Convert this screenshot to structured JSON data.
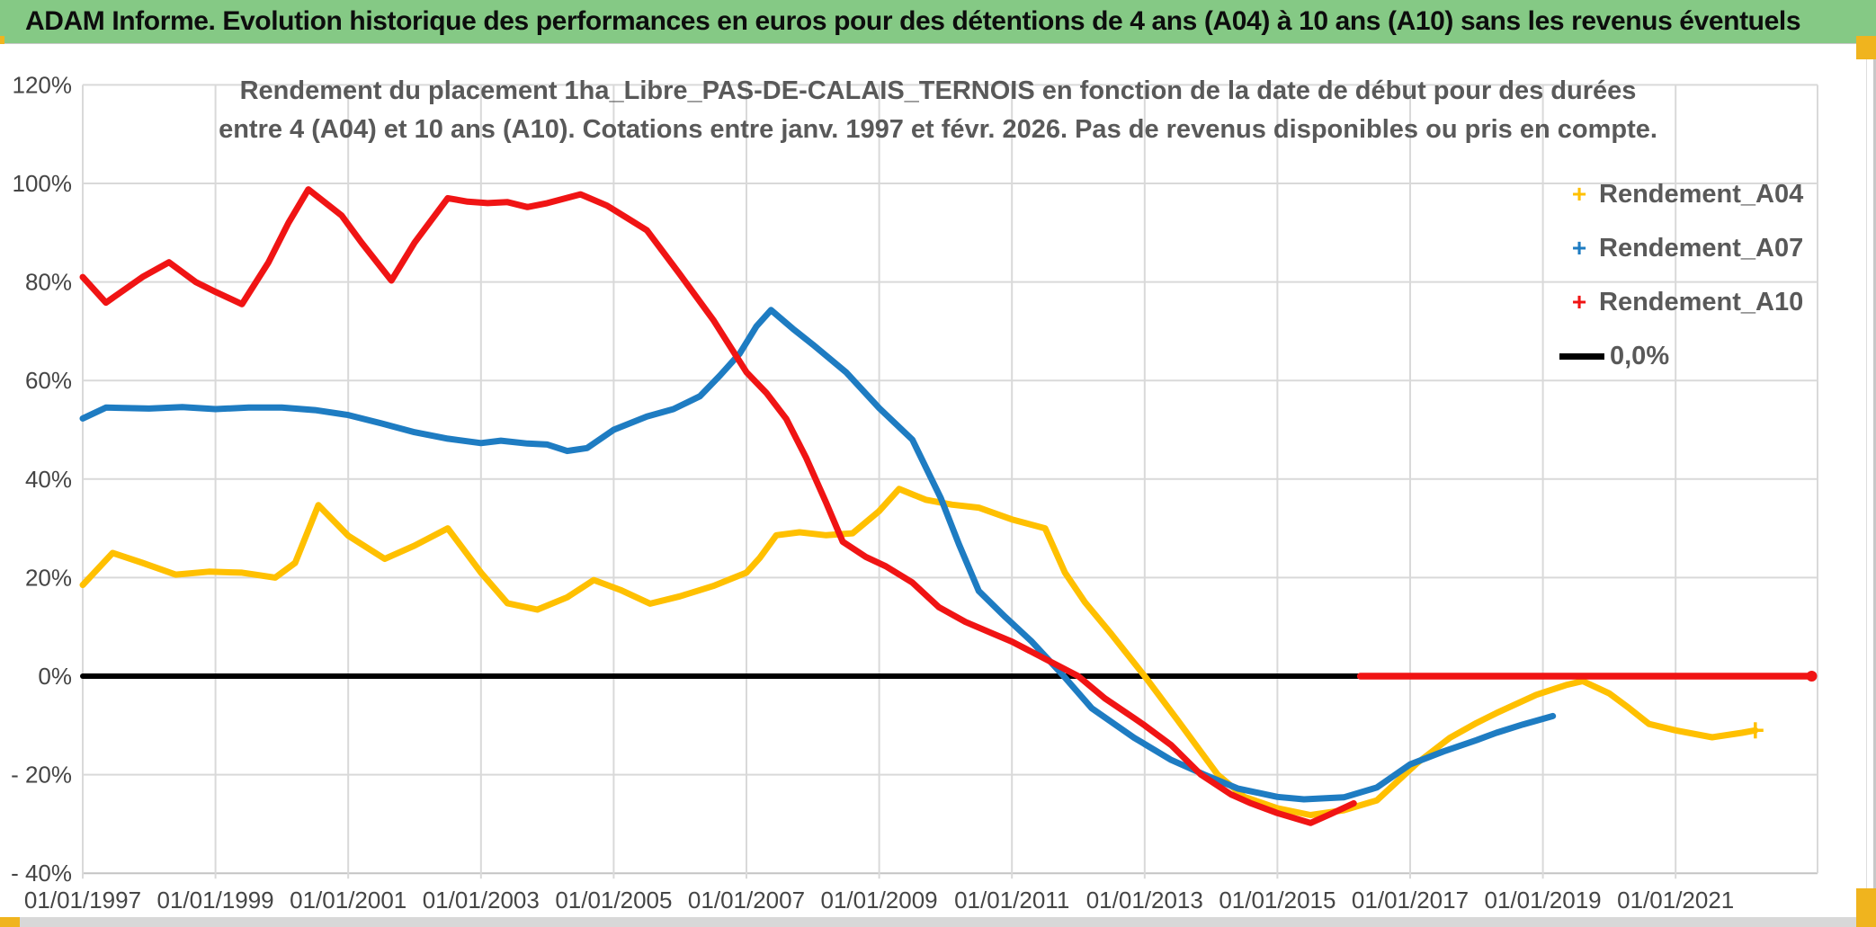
{
  "header": {
    "title": "ADAM Informe. Evolution historique des performances en euros pour des détentions de 4 ans (A04) à 10 ans (A10) sans les revenus éventuels",
    "bg_color": "#85C985"
  },
  "chart": {
    "title_line1": "Rendement du placement 1ha_Libre_PAS-DE-CALAIS_TERNOIS en fonction de la date de début pour des durées",
    "title_line2": "entre 4 (A04) et 10 ans (A10). Cotations entre janv. 1997 et févr. 2026. Pas de revenus disponibles ou pris en compte.",
    "legend": [
      {
        "label": "Rendement_A04",
        "marker": "+",
        "color": "#FFC000"
      },
      {
        "label": "Rendement_A07",
        "marker": "+",
        "color": "#1E7CC2"
      },
      {
        "label": "Rendement_A10",
        "marker": "+",
        "color": "#F01414"
      },
      {
        "label": "0,0%",
        "marker": "line",
        "color": "#000000"
      }
    ]
  },
  "accents": {
    "color": "#F0B41E",
    "strip_color": "#d8d8d8"
  },
  "chart_data": {
    "type": "line",
    "title": "Rendement du placement 1ha_Libre_PAS-DE-CALAIS_TERNOIS en fonction de la date de début pour des durées entre 4 (A04) et 10 ans (A10). Cotations entre janv. 1997 et févr. 2026. Pas de revenus disponibles ou pris en compte.",
    "xlabel": "",
    "ylabel": "",
    "grid": true,
    "legend_position": "right-top",
    "ylim": [
      -40,
      120
    ],
    "xlim_years": [
      1997.0,
      2023.15
    ],
    "y_ticks": [
      {
        "v": 120,
        "label": "120%"
      },
      {
        "v": 100,
        "label": "100%"
      },
      {
        "v": 80,
        "label": "80%"
      },
      {
        "v": 60,
        "label": "60%"
      },
      {
        "v": 40,
        "label": "40%"
      },
      {
        "v": 20,
        "label": "20%"
      },
      {
        "v": 0,
        "label": "0%"
      },
      {
        "v": -20,
        "label": "- 20%"
      },
      {
        "v": -40,
        "label": "- 40%"
      }
    ],
    "x_tick_years": [
      1997,
      1999,
      2001,
      2003,
      2005,
      2007,
      2009,
      2011,
      2013,
      2015,
      2017,
      2019,
      2021
    ],
    "x_tick_labels": [
      "01/01/1997",
      "01/01/1999",
      "01/01/2001",
      "01/01/2003",
      "01/01/2005",
      "01/01/2007",
      "01/01/2009",
      "01/01/2011",
      "01/01/2013",
      "01/01/2015",
      "01/01/2017",
      "01/01/2019",
      "01/01/2021"
    ],
    "series": [
      {
        "name": "0,0%",
        "color": "#000000",
        "width": 6,
        "end_marker": "none",
        "points": [
          [
            1997.0,
            0
          ],
          [
            2023.05,
            0
          ]
        ]
      },
      {
        "name": "Rendement_A04",
        "color": "#FFC000",
        "width": 7,
        "end_marker": "plus",
        "points": [
          [
            1997.0,
            18.5
          ],
          [
            1997.45,
            25.0
          ],
          [
            1997.9,
            23.0
          ],
          [
            1998.4,
            20.6
          ],
          [
            1998.9,
            21.2
          ],
          [
            1999.4,
            21.0
          ],
          [
            1999.9,
            20.0
          ],
          [
            2000.2,
            23.0
          ],
          [
            2000.55,
            34.7
          ],
          [
            2001.0,
            28.5
          ],
          [
            2001.55,
            23.8
          ],
          [
            2002.0,
            26.5
          ],
          [
            2002.5,
            30.0
          ],
          [
            2003.0,
            21.0
          ],
          [
            2003.4,
            14.8
          ],
          [
            2003.85,
            13.5
          ],
          [
            2004.3,
            16.0
          ],
          [
            2004.7,
            19.5
          ],
          [
            2005.1,
            17.5
          ],
          [
            2005.55,
            14.7
          ],
          [
            2006.0,
            16.2
          ],
          [
            2006.5,
            18.3
          ],
          [
            2007.0,
            21.0
          ],
          [
            2007.2,
            24.0
          ],
          [
            2007.45,
            28.6
          ],
          [
            2007.8,
            29.2
          ],
          [
            2008.2,
            28.6
          ],
          [
            2008.6,
            29.0
          ],
          [
            2009.0,
            33.5
          ],
          [
            2009.3,
            38.0
          ],
          [
            2009.7,
            35.8
          ],
          [
            2010.1,
            34.8
          ],
          [
            2010.5,
            34.2
          ],
          [
            2011.0,
            31.8
          ],
          [
            2011.5,
            30.0
          ],
          [
            2011.8,
            21.0
          ],
          [
            2012.1,
            15.0
          ],
          [
            2012.5,
            8.5
          ],
          [
            2013.0,
            0.0
          ],
          [
            2013.5,
            -9.0
          ],
          [
            2014.1,
            -20.0
          ],
          [
            2014.5,
            -24.5
          ],
          [
            2015.0,
            -26.8
          ],
          [
            2015.5,
            -28.2
          ],
          [
            2016.0,
            -27.2
          ],
          [
            2016.5,
            -25.2
          ],
          [
            2017.1,
            -17.7
          ],
          [
            2017.6,
            -12.5
          ],
          [
            2018.0,
            -9.5
          ],
          [
            2018.3,
            -7.5
          ],
          [
            2018.9,
            -3.8
          ],
          [
            2019.35,
            -1.8
          ],
          [
            2019.6,
            -1.0
          ],
          [
            2020.0,
            -3.5
          ],
          [
            2020.3,
            -6.5
          ],
          [
            2020.6,
            -9.7
          ],
          [
            2021.0,
            -11.0
          ],
          [
            2021.55,
            -12.4
          ],
          [
            2022.0,
            -11.5
          ],
          [
            2022.2,
            -11.0
          ]
        ]
      },
      {
        "name": "Rendement_A07",
        "color": "#1E7CC2",
        "width": 7,
        "end_marker": "none",
        "points": [
          [
            1997.0,
            52.3
          ],
          [
            1997.35,
            54.5
          ],
          [
            1998.0,
            54.3
          ],
          [
            1998.5,
            54.6
          ],
          [
            1999.0,
            54.2
          ],
          [
            1999.5,
            54.5
          ],
          [
            2000.0,
            54.5
          ],
          [
            2000.5,
            54.0
          ],
          [
            2001.0,
            53.0
          ],
          [
            2001.5,
            51.3
          ],
          [
            2002.0,
            49.5
          ],
          [
            2002.5,
            48.2
          ],
          [
            2003.0,
            47.3
          ],
          [
            2003.3,
            47.8
          ],
          [
            2003.7,
            47.2
          ],
          [
            2004.0,
            47.0
          ],
          [
            2004.3,
            45.7
          ],
          [
            2004.6,
            46.3
          ],
          [
            2005.0,
            50.0
          ],
          [
            2005.5,
            52.7
          ],
          [
            2005.9,
            54.2
          ],
          [
            2006.3,
            56.8
          ],
          [
            2006.6,
            61.0
          ],
          [
            2006.9,
            65.5
          ],
          [
            2007.15,
            71.0
          ],
          [
            2007.37,
            74.3
          ],
          [
            2007.7,
            70.5
          ],
          [
            2008.0,
            67.3
          ],
          [
            2008.5,
            61.7
          ],
          [
            2009.0,
            54.4
          ],
          [
            2009.5,
            48.0
          ],
          [
            2009.93,
            36.1
          ],
          [
            2010.2,
            26.8
          ],
          [
            2010.5,
            17.3
          ],
          [
            2010.9,
            12.0
          ],
          [
            2011.3,
            7.0
          ],
          [
            2011.78,
            0.0
          ],
          [
            2012.2,
            -6.5
          ],
          [
            2012.84,
            -12.5
          ],
          [
            2013.4,
            -17.0
          ],
          [
            2013.9,
            -20.0
          ],
          [
            2014.4,
            -22.8
          ],
          [
            2015.0,
            -24.5
          ],
          [
            2015.4,
            -25.0
          ],
          [
            2016.0,
            -24.6
          ],
          [
            2016.5,
            -22.6
          ],
          [
            2017.0,
            -17.9
          ],
          [
            2017.5,
            -15.3
          ],
          [
            2018.0,
            -13.0
          ],
          [
            2018.3,
            -11.5
          ],
          [
            2018.7,
            -9.8
          ],
          [
            2019.15,
            -8.1
          ]
        ]
      },
      {
        "name": "Rendement_A10",
        "color": "#F01414",
        "width": 7,
        "end_marker": "none",
        "points": [
          [
            1997.0,
            81.0
          ],
          [
            1997.35,
            75.8
          ],
          [
            1997.9,
            81.0
          ],
          [
            1998.3,
            84.0
          ],
          [
            1998.7,
            80.0
          ],
          [
            1999.0,
            78.0
          ],
          [
            1999.4,
            75.5
          ],
          [
            1999.8,
            84.0
          ],
          [
            2000.1,
            92.0
          ],
          [
            2000.4,
            98.8
          ],
          [
            2000.9,
            93.5
          ],
          [
            2001.2,
            88.0
          ],
          [
            2001.65,
            80.3
          ],
          [
            2002.0,
            88.0
          ],
          [
            2002.5,
            97.0
          ],
          [
            2002.8,
            96.3
          ],
          [
            2003.1,
            96.0
          ],
          [
            2003.4,
            96.2
          ],
          [
            2003.7,
            95.2
          ],
          [
            2004.0,
            96.0
          ],
          [
            2004.5,
            97.8
          ],
          [
            2004.9,
            95.5
          ],
          [
            2005.2,
            93.0
          ],
          [
            2005.5,
            90.5
          ],
          [
            2006.0,
            81.5
          ],
          [
            2006.5,
            72.3
          ],
          [
            2007.0,
            61.7
          ],
          [
            2007.3,
            57.5
          ],
          [
            2007.6,
            52.2
          ],
          [
            2007.9,
            44.3
          ],
          [
            2008.2,
            35.2
          ],
          [
            2008.45,
            27.3
          ],
          [
            2008.8,
            24.2
          ],
          [
            2009.1,
            22.3
          ],
          [
            2009.5,
            19.0
          ],
          [
            2009.9,
            14.0
          ],
          [
            2010.3,
            11.0
          ],
          [
            2010.7,
            8.7
          ],
          [
            2011.0,
            7.0
          ],
          [
            2011.5,
            3.5
          ],
          [
            2012.0,
            0.0
          ],
          [
            2012.4,
            -4.5
          ],
          [
            2012.84,
            -8.5
          ],
          [
            2013.0,
            -10.0
          ],
          [
            2013.4,
            -14.0
          ],
          [
            2013.85,
            -20.0
          ],
          [
            2014.3,
            -24.0
          ],
          [
            2014.6,
            -25.8
          ],
          [
            2015.0,
            -27.8
          ],
          [
            2015.5,
            -29.8
          ],
          [
            2015.8,
            -28.0
          ],
          [
            2016.15,
            -25.8
          ]
        ]
      },
      {
        "name": "Rendement_A10_zero_segment",
        "color": "#F01414",
        "width": 7.5,
        "end_marker": "dot",
        "points": [
          [
            2016.25,
            0.0
          ],
          [
            2023.05,
            0.0
          ]
        ]
      }
    ]
  }
}
